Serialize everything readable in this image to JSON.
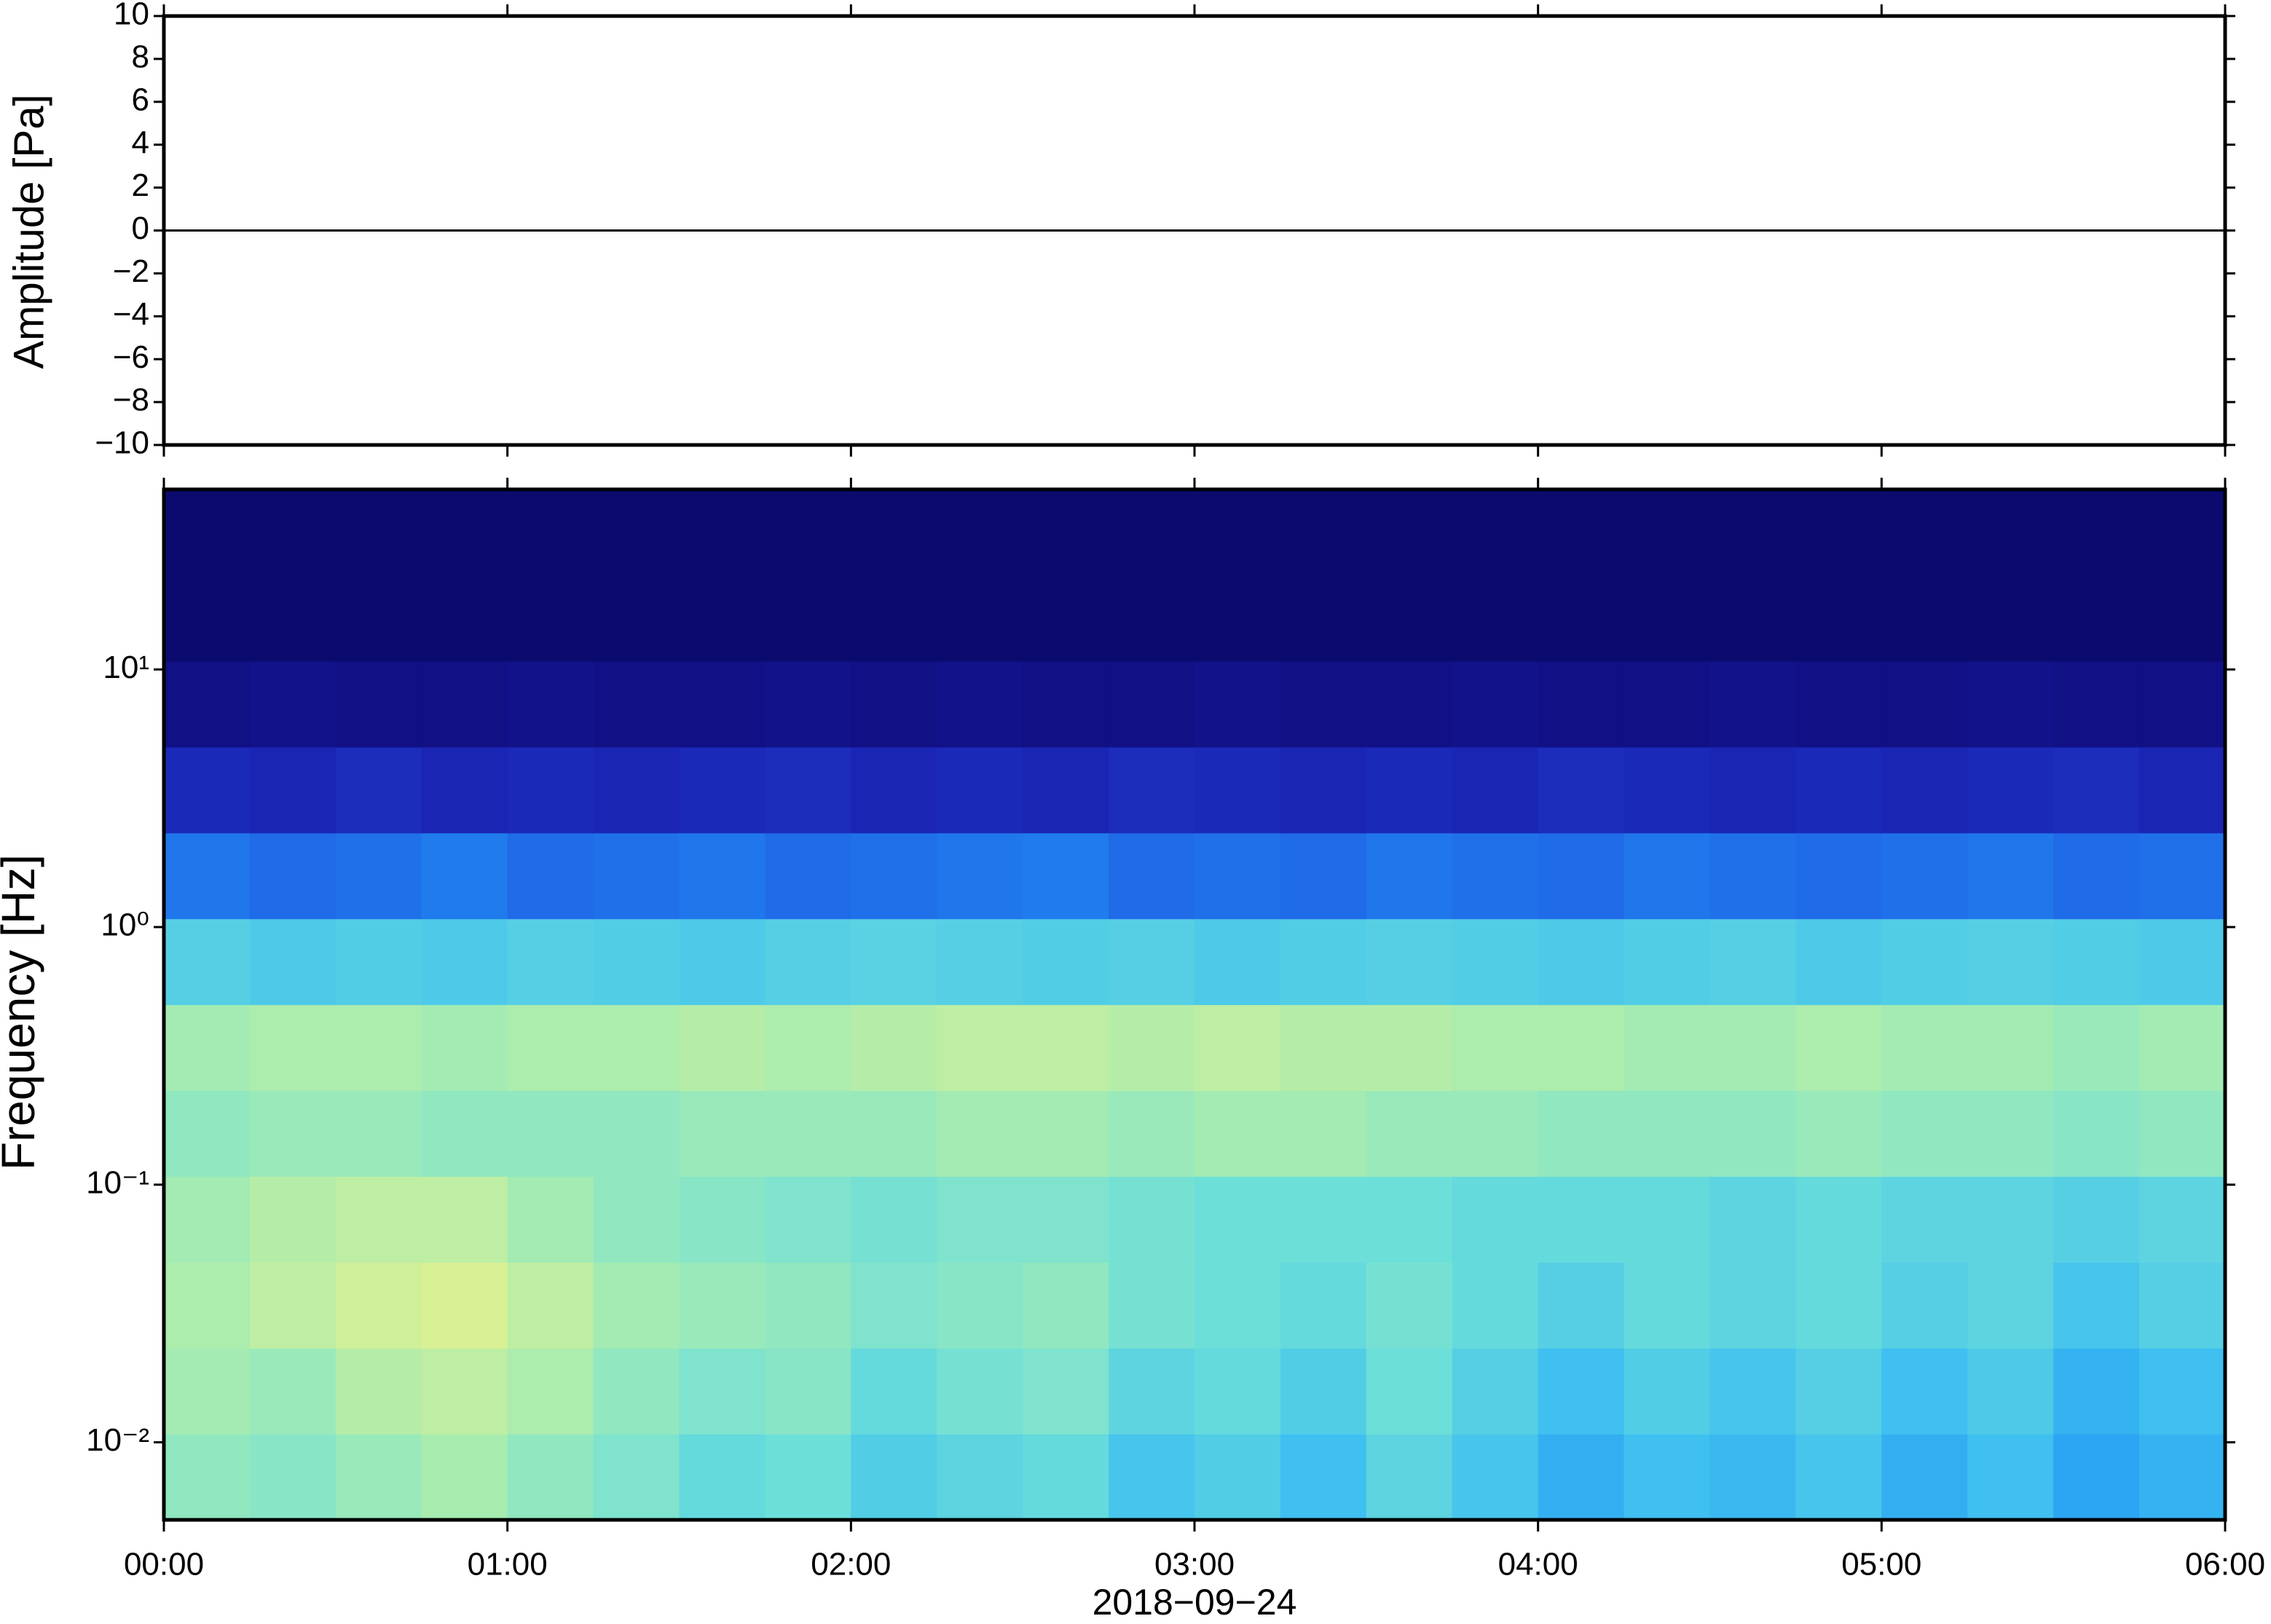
{
  "chart_data": [
    {
      "type": "line",
      "ylabel": "Amplitude [Pa]",
      "xlim": [
        0,
        6
      ],
      "xticks": [
        0,
        1,
        2,
        3,
        4,
        5,
        6
      ],
      "ylim": [
        -10,
        10
      ],
      "yticks": [
        {
          "value": -10,
          "label": "−10"
        },
        {
          "value": -8,
          "label": "−8"
        },
        {
          "value": -6,
          "label": "−6"
        },
        {
          "value": -4,
          "label": "−4"
        },
        {
          "value": -2,
          "label": "−2"
        },
        0,
        2,
        4,
        6,
        8,
        10
      ],
      "series": [
        {
          "color": "#000000",
          "x": [
            0,
            6
          ],
          "values": [
            0,
            0
          ]
        }
      ]
    },
    {
      "type": "heatmap",
      "ylabel": "Frequency [Hz]",
      "xlabel": "2018−09−24",
      "xlim": [
        0,
        6
      ],
      "xticks": [
        {
          "value": 0,
          "label": "00:00"
        },
        {
          "value": 1,
          "label": "01:00"
        },
        {
          "value": 2,
          "label": "02:00"
        },
        {
          "value": 3,
          "label": "03:00"
        },
        {
          "value": 4,
          "label": "04:00"
        },
        {
          "value": 5,
          "label": "05:00"
        },
        {
          "value": 6,
          "label": "06:00"
        }
      ],
      "ylim": [
        0.005,
        50
      ],
      "ylog": true,
      "yticks": [
        {
          "value": 0.01,
          "label": "10⁻²"
        },
        {
          "value": 0.1,
          "label": "10⁻¹"
        },
        {
          "value": 1,
          "label": "10⁰"
        },
        {
          "value": 10,
          "label": "10¹"
        }
      ],
      "zlim": [
        0,
        1
      ],
      "colorscale": [
        "#0b0a6e",
        "#1a1aa8",
        "#1f4fe0",
        "#2196f3",
        "#3fc0f0",
        "#6fe0d8",
        "#a8ecb0",
        "#e0f090",
        "#f7c870"
      ],
      "z": [
        [
          0.7,
          0.68,
          0.72,
          0.75,
          0.7,
          0.66,
          0.6,
          0.62,
          0.55,
          0.58,
          0.6,
          0.52,
          0.55,
          0.5,
          0.58,
          0.52,
          0.45,
          0.5,
          0.48,
          0.52,
          0.45,
          0.5,
          0.42,
          0.46
        ],
        [
          0.74,
          0.72,
          0.78,
          0.8,
          0.76,
          0.7,
          0.66,
          0.68,
          0.6,
          0.64,
          0.66,
          0.58,
          0.6,
          0.55,
          0.62,
          0.56,
          0.5,
          0.55,
          0.52,
          0.56,
          0.5,
          0.54,
          0.46,
          0.5
        ],
        [
          0.76,
          0.8,
          0.84,
          0.86,
          0.8,
          0.74,
          0.72,
          0.7,
          0.66,
          0.68,
          0.7,
          0.64,
          0.62,
          0.6,
          0.64,
          0.6,
          0.56,
          0.6,
          0.58,
          0.6,
          0.56,
          0.58,
          0.52,
          0.56
        ],
        [
          0.74,
          0.78,
          0.8,
          0.8,
          0.74,
          0.7,
          0.68,
          0.66,
          0.64,
          0.66,
          0.66,
          0.64,
          0.62,
          0.62,
          0.62,
          0.6,
          0.6,
          0.6,
          0.58,
          0.6,
          0.58,
          0.58,
          0.56,
          0.58
        ],
        [
          0.7,
          0.72,
          0.72,
          0.7,
          0.7,
          0.7,
          0.72,
          0.72,
          0.72,
          0.74,
          0.74,
          0.72,
          0.74,
          0.74,
          0.72,
          0.72,
          0.7,
          0.7,
          0.7,
          0.72,
          0.7,
          0.7,
          0.68,
          0.7
        ],
        [
          0.74,
          0.76,
          0.76,
          0.74,
          0.76,
          0.76,
          0.78,
          0.76,
          0.78,
          0.8,
          0.8,
          0.78,
          0.8,
          0.78,
          0.78,
          0.76,
          0.76,
          0.74,
          0.74,
          0.76,
          0.74,
          0.74,
          0.72,
          0.74
        ],
        [
          0.56,
          0.54,
          0.55,
          0.54,
          0.56,
          0.55,
          0.54,
          0.56,
          0.57,
          0.56,
          0.55,
          0.56,
          0.54,
          0.55,
          0.56,
          0.55,
          0.54,
          0.55,
          0.56,
          0.54,
          0.55,
          0.56,
          0.55,
          0.54
        ],
        [
          0.32,
          0.3,
          0.31,
          0.33,
          0.3,
          0.31,
          0.32,
          0.3,
          0.31,
          0.32,
          0.33,
          0.3,
          0.31,
          0.3,
          0.32,
          0.31,
          0.3,
          0.32,
          0.31,
          0.3,
          0.31,
          0.32,
          0.3,
          0.31
        ],
        [
          0.16,
          0.15,
          0.17,
          0.15,
          0.16,
          0.15,
          0.16,
          0.17,
          0.15,
          0.16,
          0.15,
          0.17,
          0.16,
          0.15,
          0.16,
          0.15,
          0.17,
          0.16,
          0.15,
          0.16,
          0.15,
          0.16,
          0.17,
          0.15
        ],
        [
          0.05,
          0.06,
          0.05,
          0.05,
          0.06,
          0.05,
          0.05,
          0.06,
          0.05,
          0.06,
          0.05,
          0.05,
          0.06,
          0.05,
          0.05,
          0.06,
          0.05,
          0.05,
          0.06,
          0.05,
          0.05,
          0.06,
          0.05,
          0.05
        ],
        [
          0,
          0,
          0,
          0,
          0,
          0,
          0,
          0,
          0,
          0,
          0,
          0,
          0,
          0,
          0,
          0,
          0,
          0,
          0,
          0,
          0,
          0,
          0,
          0
        ],
        [
          0,
          0,
          0,
          0,
          0,
          0,
          0,
          0,
          0,
          0,
          0,
          0,
          0,
          0,
          0,
          0,
          0,
          0,
          0,
          0,
          0,
          0,
          0,
          0
        ]
      ]
    }
  ]
}
